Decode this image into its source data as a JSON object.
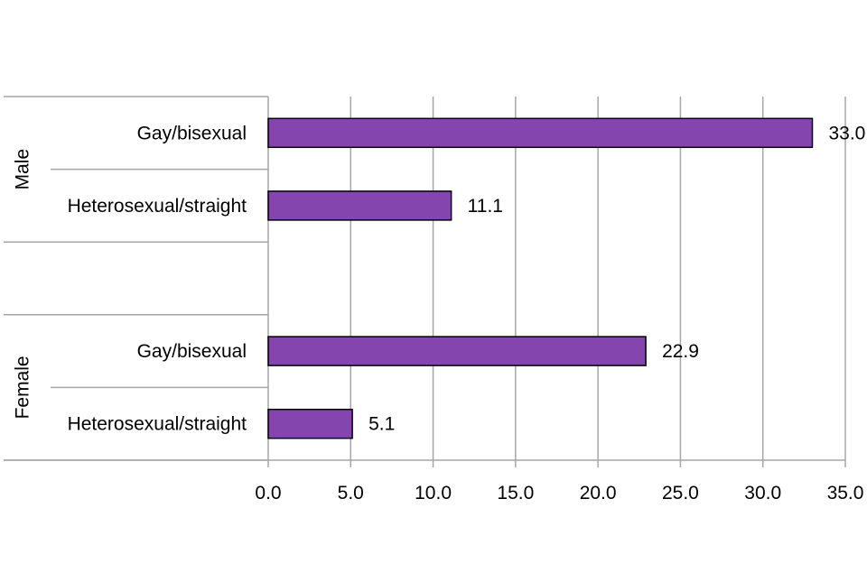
{
  "chart_data": {
    "type": "bar",
    "orientation": "horizontal",
    "title": "",
    "xlabel": "",
    "ylabel": "",
    "xlim": [
      0,
      35
    ],
    "x_ticks": [
      "0.0",
      "5.0",
      "10.0",
      "15.0",
      "20.0",
      "25.0",
      "30.0",
      "35.0"
    ],
    "grid": true,
    "legend": "none",
    "groups": [
      {
        "label": "Male",
        "bars": [
          {
            "label": "Gay/bisexual",
            "value": 33.0,
            "value_label": "33.0"
          },
          {
            "label": "Heterosexual/straight",
            "value": 11.1,
            "value_label": "11.1"
          }
        ]
      },
      {
        "label": "Female",
        "bars": [
          {
            "label": "Gay/bisexual",
            "value": 22.9,
            "value_label": "22.9"
          },
          {
            "label": "Heterosexual/straight",
            "value": 5.1,
            "value_label": "5.1"
          }
        ]
      }
    ],
    "colors": {
      "bar_fill": "#8446AE",
      "bar_stroke": "#000000",
      "gridline": "#A6A6A6",
      "axis": "#A6A6A6"
    }
  }
}
